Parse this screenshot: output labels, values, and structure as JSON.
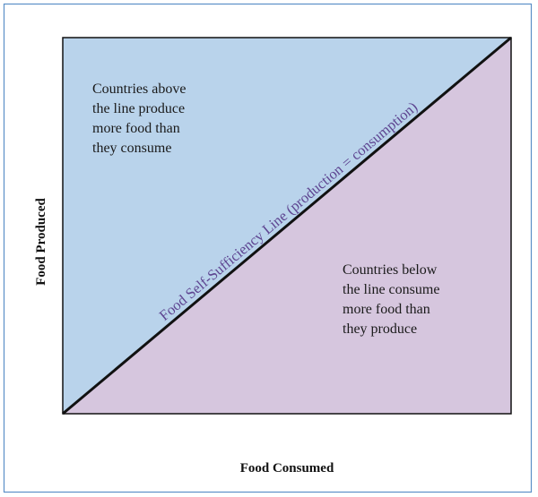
{
  "diagram": {
    "line_label": "Food Self-Sufficiency Line (production = consumption)",
    "upper_region": [
      "Countries above",
      "the line produce",
      "more food than",
      "they consume"
    ],
    "lower_region": [
      "Countries below",
      "the line consume",
      "more food than",
      "they produce"
    ],
    "x_axis_label": "Food Consumed",
    "y_axis_label": "Food Produced"
  }
}
